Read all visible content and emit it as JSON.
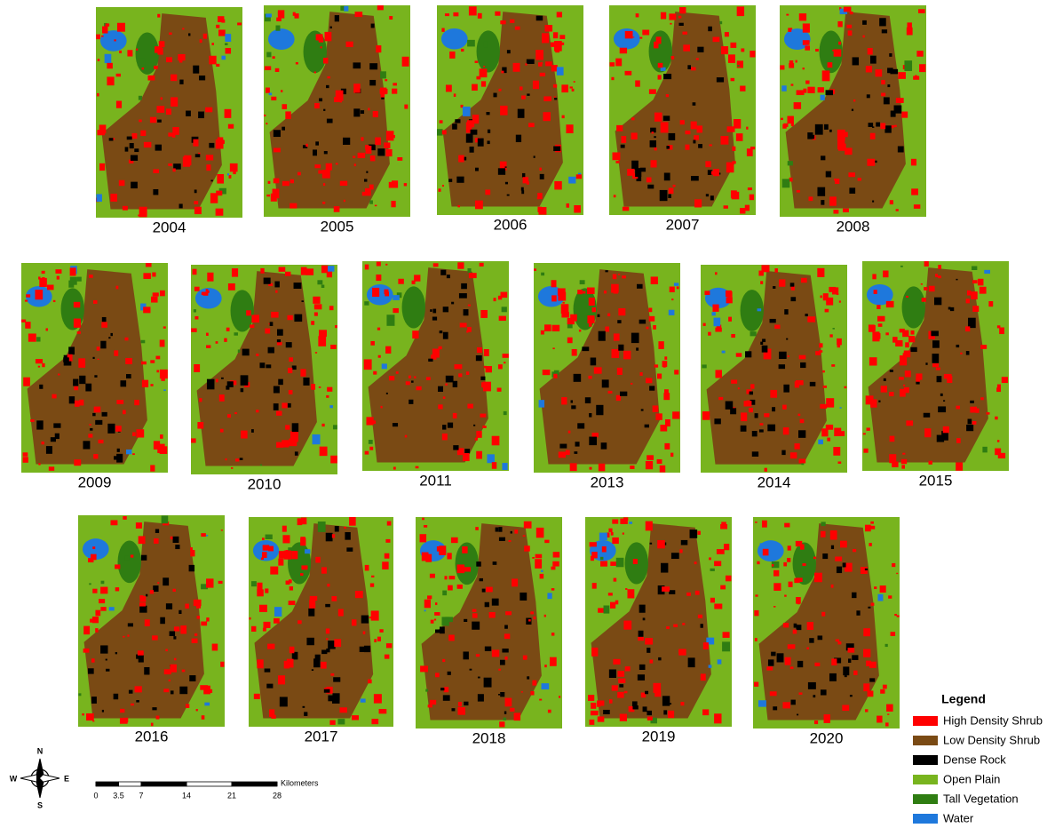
{
  "panels": [
    {
      "year": "2004"
    },
    {
      "year": "2005"
    },
    {
      "year": "2006"
    },
    {
      "year": "2007"
    },
    {
      "year": "2008"
    },
    {
      "year": "2009"
    },
    {
      "year": "2010"
    },
    {
      "year": "2011"
    },
    {
      "year": "2013"
    },
    {
      "year": "2014"
    },
    {
      "year": "2015"
    },
    {
      "year": "2016"
    },
    {
      "year": "2017"
    },
    {
      "year": "2018"
    },
    {
      "year": "2019"
    },
    {
      "year": "2020"
    }
  ],
  "legend": {
    "title": "Legend",
    "items": [
      {
        "name": "High Density Shrub",
        "color": "#ff0000"
      },
      {
        "name": "Low Density Shrub",
        "color": "#7a4a14"
      },
      {
        "name": "Dense Rock",
        "color": "#000000"
      },
      {
        "name": "Open Plain",
        "color": "#78b41e"
      },
      {
        "name": "Tall Vegetation",
        "color": "#2f7d12"
      },
      {
        "name": "Water",
        "color": "#1e78dc"
      }
    ]
  },
  "scale_bar": {
    "unit": "Kilometers",
    "ticks": [
      0,
      3.5,
      7,
      14,
      21,
      28
    ]
  },
  "compass": {
    "n": "N",
    "s": "S",
    "e": "E",
    "w": "W"
  }
}
